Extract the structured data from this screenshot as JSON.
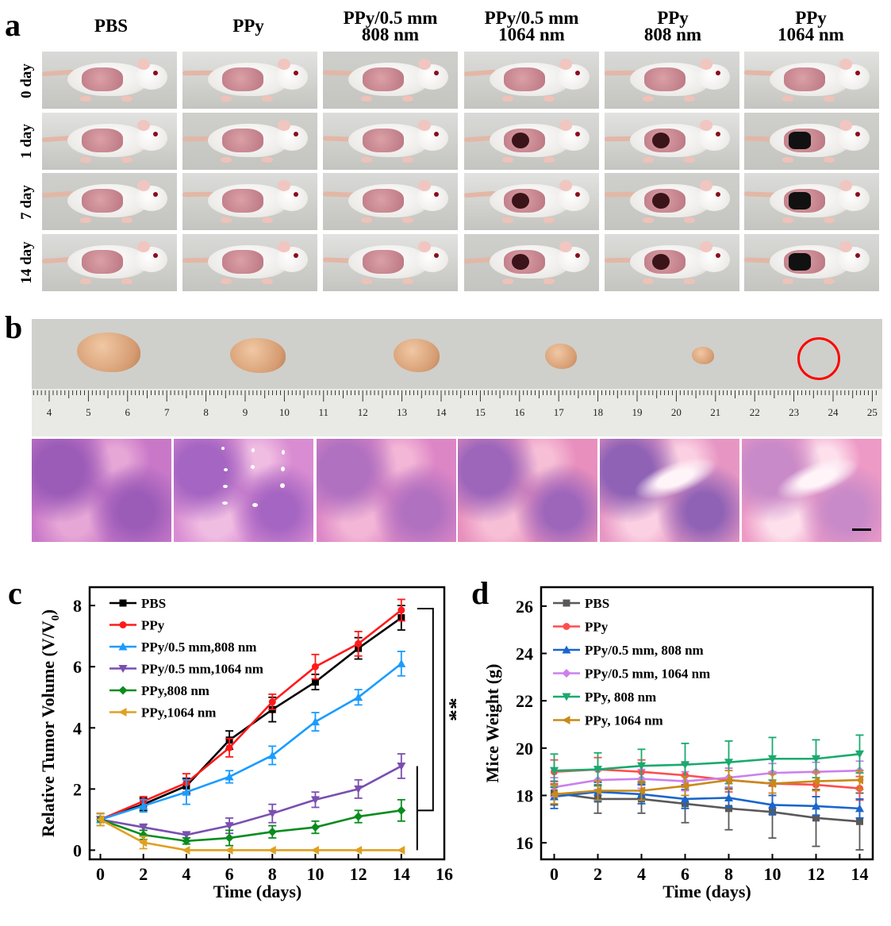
{
  "panels": {
    "a": "a",
    "b": "b",
    "c": "c",
    "d": "d"
  },
  "groups": [
    "PBS",
    "PPy",
    "PPy/0.5 mm\n808 nm",
    "PPy/0.5 mm\n1064 nm",
    "PPy\n808 nm",
    "PPy\n1064 nm"
  ],
  "days": [
    "0 day",
    "1 day",
    "7 day",
    "14 day"
  ],
  "ruler_labels": [
    "4",
    "5",
    "6",
    "7",
    "8",
    "9",
    "10",
    "11",
    "12",
    "13",
    "14",
    "15",
    "16",
    "17",
    "18",
    "19",
    "20",
    "21",
    "22",
    "23",
    "24",
    "25"
  ],
  "colors": {
    "PBS": "#000000",
    "PPy": "#ff1a1a",
    "PPy_808_05": "#1a9cff",
    "PPy_1064_05": "#7a4fb0",
    "PPy_808": "#0a8c1e",
    "PPy_1064": "#e0a020",
    "d_PBS": "#595959",
    "d_PPy": "#ff4d4d",
    "d_808_05": "#1a66cc",
    "d_1064_05": "#cc80ee",
    "d_808": "#1aaa6e",
    "d_1064": "#c88a1a",
    "marker_circle": "#ff0000"
  },
  "chart_data": [
    {
      "type": "line",
      "panel": "c",
      "xlabel": "Time (days)",
      "ylabel": "Relative Tumor Volume (V/V",
      "ylabel_sub": "0",
      "ylabel_close": ")",
      "xlim": [
        -0.5,
        16
      ],
      "ylim": [
        -0.3,
        8.6
      ],
      "xticks": [
        0,
        2,
        4,
        6,
        8,
        10,
        12,
        14,
        16
      ],
      "yticks": [
        0,
        2,
        4,
        6,
        8
      ],
      "x": [
        0,
        2,
        4,
        6,
        8,
        10,
        12,
        14
      ],
      "annotation": "**",
      "series": [
        {
          "name": "PBS",
          "color": "#000000",
          "marker": "square",
          "values": [
            1.0,
            1.5,
            2.1,
            3.6,
            4.6,
            5.5,
            6.6,
            7.6
          ],
          "errors": [
            0.2,
            0.2,
            0.25,
            0.3,
            0.4,
            0.25,
            0.35,
            0.4
          ]
        },
        {
          "name": "PPy",
          "color": "#ff1a1a",
          "marker": "circle",
          "values": [
            1.0,
            1.6,
            2.2,
            3.35,
            4.85,
            6.0,
            6.75,
            7.85
          ],
          "errors": [
            0.2,
            0.15,
            0.3,
            0.3,
            0.25,
            0.4,
            0.4,
            0.35
          ]
        },
        {
          "name": "PPy/0.5 mm,808 nm",
          "color": "#1a9cff",
          "marker": "triangle-up",
          "values": [
            1.0,
            1.45,
            1.9,
            2.4,
            3.1,
            4.2,
            5.0,
            6.1
          ],
          "errors": [
            0.2,
            0.2,
            0.4,
            0.2,
            0.3,
            0.3,
            0.25,
            0.4
          ]
        },
        {
          "name": "PPy/0.5 mm,1064 nm",
          "color": "#7a4fb0",
          "marker": "triangle-down",
          "values": [
            1.0,
            0.75,
            0.5,
            0.8,
            1.2,
            1.65,
            2.0,
            2.75
          ],
          "errors": [
            0.2,
            0.1,
            0.1,
            0.25,
            0.3,
            0.25,
            0.3,
            0.4
          ]
        },
        {
          "name": "PPy,808 nm",
          "color": "#0a8c1e",
          "marker": "diamond",
          "values": [
            1.0,
            0.5,
            0.3,
            0.4,
            0.6,
            0.75,
            1.1,
            1.3
          ],
          "errors": [
            0.2,
            0.15,
            0.1,
            0.25,
            0.2,
            0.2,
            0.2,
            0.35
          ]
        },
        {
          "name": "PPy,1064 nm",
          "color": "#e0a020",
          "marker": "triangle-left",
          "values": [
            1.0,
            0.25,
            0.0,
            0.0,
            0.0,
            0.0,
            0.0,
            0.0
          ],
          "errors": [
            0.2,
            0.2,
            0.0,
            0.0,
            0.0,
            0.0,
            0.0,
            0.0
          ]
        }
      ]
    },
    {
      "type": "line",
      "panel": "d",
      "xlabel": "Time (days)",
      "ylabel": "Mice Weight (g)",
      "xlim": [
        -0.6,
        14.6
      ],
      "ylim": [
        15.3,
        26.8
      ],
      "xticks": [
        0,
        2,
        4,
        6,
        8,
        10,
        12,
        14
      ],
      "yticks": [
        16,
        18,
        20,
        22,
        24,
        26
      ],
      "x": [
        0,
        2,
        4,
        6,
        8,
        10,
        12,
        14
      ],
      "series": [
        {
          "name": "PBS",
          "color": "#595959",
          "marker": "square",
          "values": [
            18.1,
            17.85,
            17.85,
            17.65,
            17.45,
            17.3,
            17.05,
            16.9
          ],
          "errors": [
            0.5,
            0.6,
            0.6,
            0.8,
            0.9,
            1.1,
            1.2,
            1.2
          ]
        },
        {
          "name": "PPy",
          "color": "#ff4d4d",
          "marker": "circle",
          "values": [
            19.0,
            19.1,
            19.0,
            18.85,
            18.65,
            18.5,
            18.45,
            18.3
          ],
          "errors": [
            0.5,
            0.5,
            0.5,
            0.5,
            0.5,
            0.5,
            0.5,
            0.5
          ]
        },
        {
          "name": "PPy/0.5 mm, 808 nm",
          "color": "#1a66cc",
          "marker": "triangle-up",
          "values": [
            17.95,
            18.15,
            18.05,
            17.85,
            17.9,
            17.6,
            17.55,
            17.45
          ],
          "errors": [
            0.5,
            0.4,
            0.4,
            0.4,
            0.4,
            0.4,
            0.4,
            0.4
          ]
        },
        {
          "name": "PPy/0.5 mm, 1064 nm",
          "color": "#cc80ee",
          "marker": "diamond",
          "values": [
            18.35,
            18.65,
            18.7,
            18.6,
            18.75,
            18.95,
            19.0,
            19.05
          ],
          "errors": [
            0.4,
            0.4,
            0.4,
            0.4,
            0.4,
            0.4,
            0.4,
            0.4
          ]
        },
        {
          "name": "PPy, 808 nm",
          "color": "#1aaa6e",
          "marker": "triangle-down",
          "values": [
            19.05,
            19.1,
            19.25,
            19.3,
            19.4,
            19.55,
            19.55,
            19.75
          ],
          "errors": [
            0.7,
            0.7,
            0.7,
            0.9,
            0.9,
            0.9,
            0.8,
            0.8
          ]
        },
        {
          "name": "PPy, 1064 nm",
          "color": "#c88a1a",
          "marker": "triangle-left",
          "values": [
            18.05,
            18.2,
            18.2,
            18.4,
            18.65,
            18.5,
            18.6,
            18.65
          ],
          "errors": [
            0.4,
            0.4,
            0.4,
            0.4,
            0.4,
            0.4,
            0.4,
            0.4
          ]
        }
      ]
    }
  ]
}
